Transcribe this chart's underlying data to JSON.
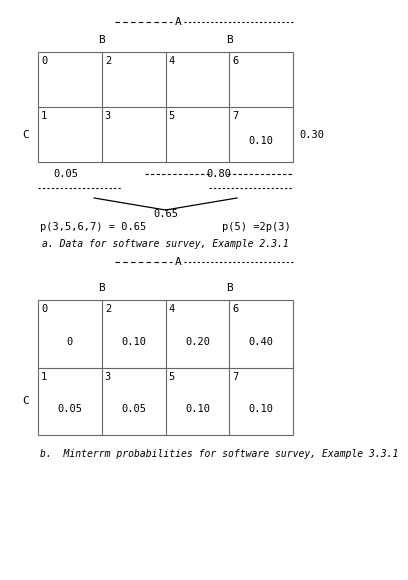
{
  "table1": {
    "cells": [
      [
        "0",
        "2",
        "4",
        "6"
      ],
      [
        "1",
        "3",
        "5",
        "7"
      ]
    ],
    "cell_values": [
      [
        "",
        "",
        "",
        ""
      ],
      [
        "",
        "",
        "",
        "0.10"
      ]
    ],
    "label_A": "A",
    "label_B1": "B",
    "label_B2": "B",
    "label_C": "C",
    "right_label": "0.30",
    "annotations": {
      "left_val": "0.05",
      "center_val": "0.80",
      "center_val2": "0.65",
      "eq1": "p(3,5,6,7) = 0.65",
      "eq2": "p(5) =2p(3)",
      "caption": "a. Data for software survey, Example 2.3.1"
    }
  },
  "table2": {
    "cells": [
      [
        "0",
        "2",
        "4",
        "6"
      ],
      [
        "1",
        "3",
        "5",
        "7"
      ]
    ],
    "cell_values": [
      [
        "0",
        "0.10",
        "0.20",
        "0.40"
      ],
      [
        "0.05",
        "0.05",
        "0.10",
        "0.10"
      ]
    ],
    "label_A": "A",
    "label_B1": "B",
    "label_B2": "B",
    "label_C": "C",
    "caption": "b.  Minterrm probabilities for software survey, Example 3.3.1"
  },
  "bg_color": "#ffffff",
  "text_color": "#000000",
  "line_color": "#666666"
}
